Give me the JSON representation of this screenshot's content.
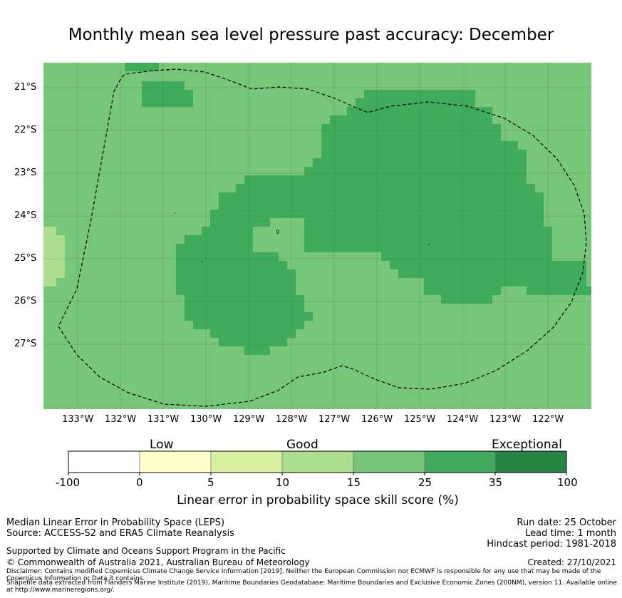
{
  "title": "Monthly mean sea level pressure past accuracy: December",
  "map": {
    "latitude_labels": [
      "21°S",
      "22°S",
      "23°S",
      "24°S",
      "25°S",
      "26°S",
      "27°S"
    ],
    "longitude_labels": [
      "133°W",
      "132°W",
      "131°W",
      "130°W",
      "129°W",
      "128°W",
      "127°W",
      "126°W",
      "125°W",
      "124°W",
      "123°W",
      "122°W"
    ],
    "lon_range": [
      -133.8,
      -121.0
    ],
    "lat_range": [
      -28.5,
      -20.45
    ],
    "colors": {
      "skill_15_25": "#78c679",
      "skill_25_35": "#41ab5d",
      "skill_10_15": "#addd8e",
      "boundary": "#000000"
    }
  },
  "colorbar": {
    "categories": [
      "Low",
      "Good",
      "Exceptional"
    ],
    "ticks": [
      "-100",
      "0",
      "5",
      "10",
      "15",
      "25",
      "35",
      "100"
    ],
    "segments": [
      {
        "from": "-100",
        "to": "0",
        "color": "#ffffff"
      },
      {
        "from": "0",
        "to": "5",
        "color": "#ffffcc"
      },
      {
        "from": "5",
        "to": "10",
        "color": "#d9f0a3"
      },
      {
        "from": "10",
        "to": "15",
        "color": "#addd8e"
      },
      {
        "from": "15",
        "to": "25",
        "color": "#78c679"
      },
      {
        "from": "25",
        "to": "35",
        "color": "#41ab5d"
      },
      {
        "from": "35",
        "to": "100",
        "color": "#238443"
      }
    ],
    "label": "Linear error in probability space skill score (%)"
  },
  "footer": {
    "method": "Median Linear Error in Probability Space (LEPS)",
    "source": "Source: ACCESS-S2 and ERA5 Climate Reanalysis",
    "support": "Supported by Climate and Oceans Support Program in the Pacific",
    "copyright": "© Commonwealth of Australia 2021, Australian Bureau of Meteorology",
    "disclaimer": "Disclaimer: Contains modified Copernicus Climate Change Service Information [2019]. Neither the European Commission nor ECMWF is responsible for any use that may be made of the Copernicus Information or Data it contains.",
    "shapefile": "Shapefile data extracted from Flanders Marine Institute (2019), Maritime Boundaries Geodatabase: Maritime Boundaries and Exclusive Economic Zones (200NM), version 11. Available online at http://www.marineregions.org/.",
    "run_date": "Run date: 25 October",
    "lead_time": "Lead time: 1 month",
    "hindcast": "Hindcast period: 1981-2018",
    "created": "Created: 27/10/2021"
  }
}
